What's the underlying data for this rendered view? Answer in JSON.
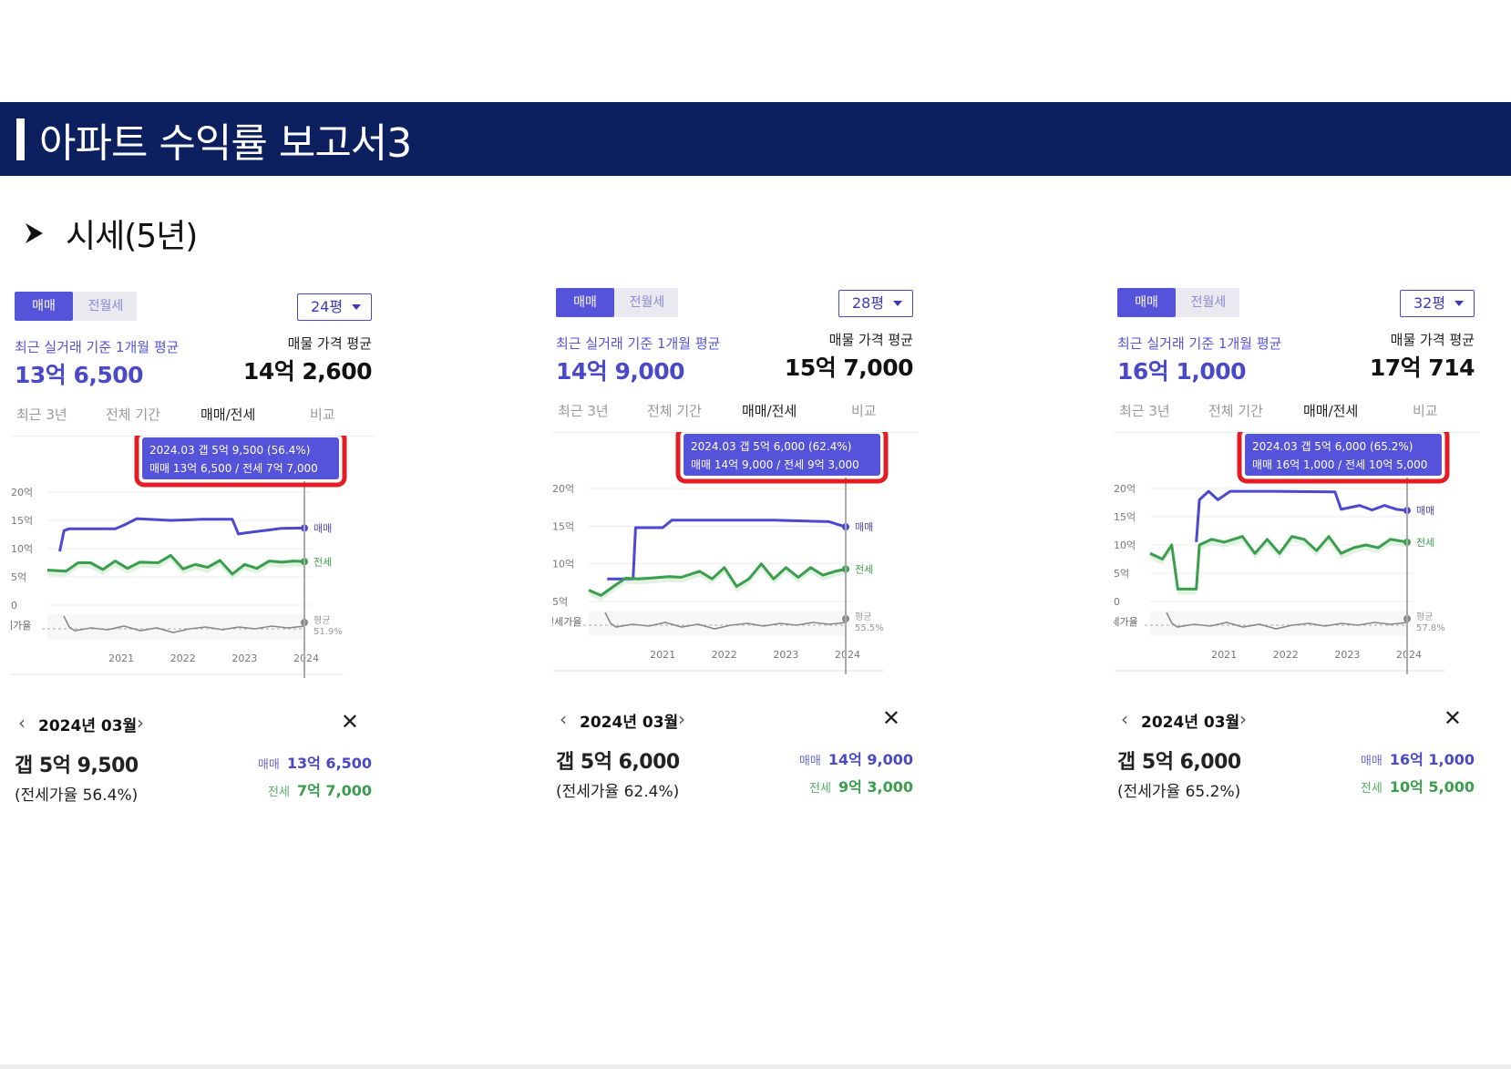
{
  "header": {
    "title": "아파트 수익률 보고서3"
  },
  "section": {
    "title": "시세(5년)"
  },
  "panels": [
    {
      "tabs": {
        "sale": "매매",
        "rent": "전월세"
      },
      "size": "24평",
      "recent_label": "최근 실거래 기준 1개월 평균",
      "recent_price": "13억 6,500",
      "ask_label": "매물 가격 평균",
      "ask_price": "14억 2,600",
      "range_tabs": [
        "최근 3년",
        "전체 기간",
        "매매/전세",
        "비교"
      ],
      "tooltip": {
        "line1": "2024.03  갭 5억 9,500 (56.4%)",
        "line2": "매매 13억 6,500 / 전세 7억 7,000"
      },
      "month": "2024년 03월",
      "gap": "갭 5억 9,500",
      "ratio": "(전세가율 56.4%)",
      "sale_label": "매매",
      "sale_value": "13억 6,500",
      "jeonse_label": "전세",
      "jeonse_value": "7억 7,000",
      "chart_labels": {
        "sale": "매매",
        "jeonse": "전세",
        "avg": "평균",
        "avg_pct": "51.9%",
        "ratio_axis": "세가율"
      }
    },
    {
      "tabs": {
        "sale": "매매",
        "rent": "전월세"
      },
      "size": "28평",
      "recent_label": "최근 실거래 기준 1개월 평균",
      "recent_price": "14억 9,000",
      "ask_label": "매물 가격 평균",
      "ask_price": "15억 7,000",
      "range_tabs": [
        "최근 3년",
        "전체 기간",
        "매매/전세",
        "비교"
      ],
      "tooltip": {
        "line1": "2024.03  갭 5억 6,000 (62.4%)",
        "line2": "매매 14억 9,000 / 전세 9억 3,000"
      },
      "month": "2024년 03월",
      "gap": "갭 5억 6,000",
      "ratio": "(전세가율 62.4%)",
      "sale_label": "매매",
      "sale_value": "14억 9,000",
      "jeonse_label": "전세",
      "jeonse_value": "9억 3,000",
      "chart_labels": {
        "sale": "매매",
        "jeonse": "전세",
        "avg": "평균",
        "avg_pct": "55.5%",
        "ratio_axis": "전세가율"
      }
    },
    {
      "tabs": {
        "sale": "매매",
        "rent": "전월세"
      },
      "size": "32평",
      "recent_label": "최근 실거래 기준 1개월 평균",
      "recent_price": "16억 1,000",
      "ask_label": "매물 가격 평균",
      "ask_price": "17억 714",
      "range_tabs": [
        "최근 3년",
        "전체 기간",
        "매매/전세",
        "비교"
      ],
      "tooltip": {
        "line1": "2024.03  갭 5억 6,000 (65.2%)",
        "line2": "매매 16억 1,000 / 전세 10억 5,000"
      },
      "month": "2024년 03월",
      "gap": "갭 5억 6,000",
      "ratio": "(전세가율 65.2%)",
      "sale_label": "매매",
      "sale_value": "16억 1,000",
      "jeonse_label": "전세",
      "jeonse_value": "10억 5,000",
      "chart_labels": {
        "sale": "매매",
        "jeonse": "전세",
        "avg": "평균",
        "avg_pct": "57.8%",
        "ratio_axis": "!세가율"
      }
    }
  ],
  "chart_data": [
    {
      "type": "line",
      "title": "24평",
      "ylabel": "억",
      "yticks": [
        "20억",
        "15억",
        "10억",
        "5억",
        "0"
      ],
      "ylim": [
        0,
        20
      ],
      "xticks": [
        "2021",
        "2022",
        "2023",
        "2024"
      ],
      "x_range": [
        2020.0,
        2024.17
      ],
      "series": [
        {
          "name": "매매",
          "color": "#4b49d1",
          "x": [
            2020.2,
            2020.27,
            2020.35,
            2020.8,
            2021.1,
            2021.25,
            2021.45,
            2022.0,
            2022.3,
            2022.5,
            2023.0,
            2023.1,
            2023.3,
            2023.6,
            2023.8,
            2024.17
          ],
          "y": [
            9.5,
            13.2,
            13.5,
            13.5,
            13.5,
            14.2,
            15.3,
            15.0,
            15.1,
            15.2,
            15.2,
            12.6,
            12.9,
            13.3,
            13.6,
            13.65
          ]
        },
        {
          "name": "전세",
          "color": "#3a9e4d",
          "x": [
            2020.0,
            2020.3,
            2020.5,
            2020.7,
            2020.9,
            2021.1,
            2021.3,
            2021.5,
            2021.8,
            2022.0,
            2022.2,
            2022.4,
            2022.6,
            2022.8,
            2023.0,
            2023.2,
            2023.4,
            2023.6,
            2023.8,
            2024.0,
            2024.17
          ],
          "y": [
            6.2,
            6.0,
            7.5,
            7.5,
            6.3,
            7.8,
            6.5,
            7.6,
            7.5,
            8.8,
            6.4,
            7.2,
            6.7,
            7.9,
            5.5,
            7.2,
            6.5,
            7.8,
            7.6,
            7.8,
            7.7
          ]
        }
      ],
      "ratio_series": {
        "name": "전세가율",
        "avg": 51.9,
        "last": 56.4
      }
    },
    {
      "type": "line",
      "title": "28평",
      "ylabel": "억",
      "yticks": [
        "20억",
        "15억",
        "10억",
        "5억"
      ],
      "ylim": [
        5,
        20
      ],
      "xticks": [
        "2021",
        "2022",
        "2023",
        "2024"
      ],
      "x_range": [
        2020.0,
        2024.17
      ],
      "series": [
        {
          "name": "매매",
          "color": "#4b49d1",
          "x": [
            2020.3,
            2020.72,
            2020.76,
            2021.2,
            2021.35,
            2022.0,
            2023.0,
            2023.9,
            2024.17
          ],
          "y": [
            8.0,
            8.0,
            14.8,
            14.8,
            15.8,
            15.8,
            15.8,
            15.6,
            14.9
          ]
        },
        {
          "name": "전세",
          "color": "#3a9e4d",
          "x": [
            2020.0,
            2020.2,
            2020.4,
            2020.6,
            2020.8,
            2021.0,
            2021.3,
            2021.5,
            2021.8,
            2022.0,
            2022.2,
            2022.4,
            2022.6,
            2022.8,
            2023.0,
            2023.2,
            2023.4,
            2023.6,
            2023.8,
            2024.0,
            2024.17
          ],
          "y": [
            6.5,
            5.8,
            7.0,
            8.1,
            8.0,
            8.1,
            8.3,
            8.2,
            9.0,
            8.0,
            9.5,
            7.0,
            8.0,
            10.0,
            8.0,
            9.5,
            8.2,
            9.5,
            8.5,
            9.0,
            9.3
          ]
        }
      ],
      "ratio_series": {
        "name": "전세가율",
        "avg": 55.5,
        "last": 62.4
      }
    },
    {
      "type": "line",
      "title": "32평",
      "ylabel": "억",
      "yticks": [
        "20억",
        "15억",
        "10억",
        "5억",
        "0"
      ],
      "ylim": [
        0,
        20
      ],
      "xticks": [
        "2021",
        "2022",
        "2023",
        "2024"
      ],
      "x_range": [
        2020.0,
        2024.17
      ],
      "series": [
        {
          "name": "매매",
          "color": "#4b49d1",
          "x": [
            2020.75,
            2020.8,
            2020.95,
            2021.1,
            2021.3,
            2022.0,
            2023.0,
            2023.1,
            2023.4,
            2023.6,
            2023.8,
            2024.0,
            2024.17
          ],
          "y": [
            10.5,
            18.0,
            19.5,
            18.0,
            19.5,
            19.5,
            19.4,
            16.3,
            17.0,
            16.2,
            17.0,
            16.3,
            16.1
          ]
        },
        {
          "name": "전세",
          "color": "#3a9e4d",
          "x": [
            2020.0,
            2020.2,
            2020.35,
            2020.45,
            2020.55,
            2020.75,
            2020.8,
            2021.0,
            2021.2,
            2021.5,
            2021.7,
            2021.9,
            2022.1,
            2022.3,
            2022.5,
            2022.7,
            2022.9,
            2023.1,
            2023.3,
            2023.5,
            2023.7,
            2023.9,
            2024.17
          ],
          "y": [
            8.5,
            7.5,
            10.0,
            2.2,
            2.2,
            2.2,
            10.0,
            11.0,
            10.5,
            11.5,
            8.5,
            11.0,
            8.5,
            11.5,
            11.0,
            9.0,
            11.5,
            8.5,
            9.5,
            10.0,
            9.5,
            11.0,
            10.5
          ]
        }
      ],
      "ratio_series": {
        "name": "전세가율",
        "avg": 57.8,
        "last": 65.2
      }
    }
  ]
}
